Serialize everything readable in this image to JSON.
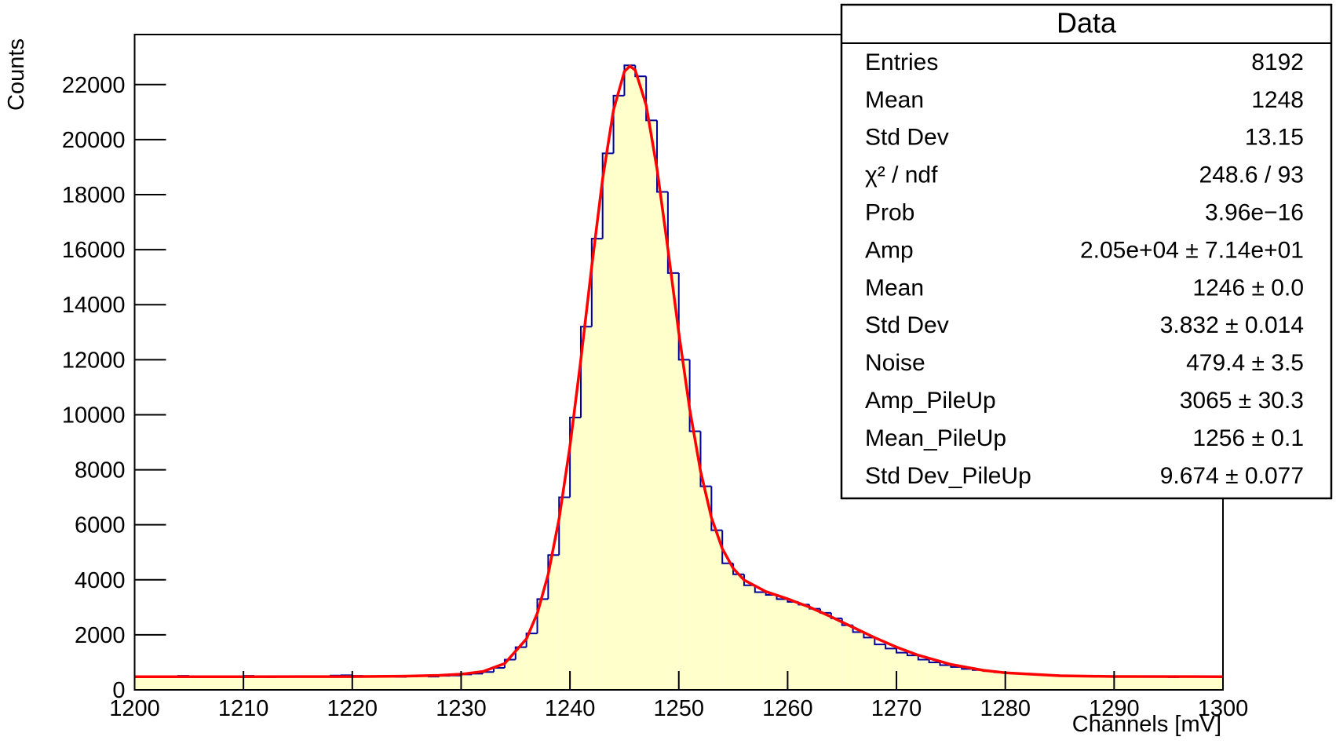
{
  "chart_data": {
    "type": "histogram",
    "ylabel": "Counts",
    "xlabel": "Channels [mV]",
    "bins": [
      1200,
      1201,
      1202,
      1203,
      1204,
      1205,
      1206,
      1207,
      1208,
      1209,
      1210,
      1211,
      1212,
      1213,
      1214,
      1215,
      1216,
      1217,
      1218,
      1219,
      1220,
      1221,
      1222,
      1223,
      1224,
      1225,
      1226,
      1227,
      1228,
      1229,
      1230,
      1231,
      1232,
      1233,
      1234,
      1235,
      1236,
      1237,
      1238,
      1239,
      1240,
      1241,
      1242,
      1243,
      1244,
      1245,
      1246,
      1247,
      1248,
      1249,
      1250,
      1251,
      1252,
      1253,
      1254,
      1255,
      1256,
      1257,
      1258,
      1259,
      1260,
      1261,
      1262,
      1263,
      1264,
      1265,
      1266,
      1267,
      1268,
      1269,
      1270,
      1271,
      1272,
      1273,
      1274,
      1275,
      1276,
      1277,
      1278,
      1279,
      1280,
      1281,
      1282,
      1283,
      1284,
      1285,
      1286,
      1287,
      1288,
      1289,
      1290,
      1291,
      1292,
      1293,
      1294,
      1295,
      1296,
      1297,
      1298,
      1299,
      1300
    ],
    "values": [
      480,
      490,
      470,
      500,
      510,
      480,
      470,
      490,
      500,
      480,
      510,
      470,
      460,
      480,
      490,
      470,
      500,
      480,
      520,
      530,
      510,
      500,
      480,
      490,
      470,
      490,
      500,
      480,
      510,
      520,
      560,
      590,
      650,
      800,
      1100,
      1550,
      2050,
      3300,
      4900,
      7000,
      9900,
      13200,
      16400,
      19500,
      21600,
      22700,
      22300,
      20700,
      18100,
      15150,
      12000,
      9400,
      7400,
      5800,
      4600,
      4200,
      3800,
      3550,
      3450,
      3300,
      3200,
      3100,
      2950,
      2800,
      2600,
      2350,
      2100,
      1900,
      1650,
      1500,
      1350,
      1250,
      1100,
      1000,
      900,
      830,
      760,
      720,
      680,
      640,
      610,
      590,
      560,
      550,
      530,
      520,
      500,
      490,
      500,
      480,
      490,
      470,
      480,
      500,
      470,
      460,
      480,
      470,
      490,
      480
    ],
    "color": "#ffffcc",
    "edge_color": "#000099",
    "fit": {
      "color": "#ff0000",
      "x": [
        1200,
        1210,
        1220,
        1225,
        1228,
        1230,
        1232,
        1234,
        1236,
        1237,
        1238,
        1239,
        1240,
        1241,
        1242,
        1243,
        1244,
        1245,
        1245.5,
        1246,
        1247,
        1248,
        1249,
        1250,
        1251,
        1252,
        1253,
        1254,
        1255,
        1256,
        1258,
        1260,
        1262,
        1264,
        1266,
        1268,
        1270,
        1272,
        1275,
        1278,
        1280,
        1285,
        1290,
        1300
      ],
      "values": [
        479,
        479,
        482,
        498,
        527,
        569,
        666,
        956,
        1852,
        2782,
        4199,
        6215,
        8856,
        12004,
        15387,
        18570,
        21076,
        22474,
        22673,
        22525,
        21255,
        18937,
        16023,
        12982,
        10209,
        7946,
        6260,
        5131,
        4417,
        3991,
        3571,
        3307,
        3009,
        2656,
        2275,
        1899,
        1555,
        1260,
        925,
        710,
        620,
        513,
        485,
        479
      ]
    },
    "xlim": [
      1200,
      1300
    ],
    "ylim": [
      0,
      23820
    ],
    "xticks": [
      1200,
      1210,
      1220,
      1230,
      1240,
      1250,
      1260,
      1270,
      1280,
      1290,
      1300
    ],
    "yticks": [
      0,
      2000,
      4000,
      6000,
      8000,
      10000,
      12000,
      14000,
      16000,
      18000,
      20000,
      22000
    ],
    "stats": {
      "title": "Data",
      "rows": [
        [
          "Entries",
          "8192"
        ],
        [
          "Mean",
          "1248"
        ],
        [
          "Std Dev",
          "13.15"
        ],
        [
          "χ² / ndf",
          "248.6 / 93"
        ],
        [
          "Prob",
          "3.96e−16"
        ],
        [
          "Amp",
          "2.05e+04 ± 7.14e+01"
        ],
        [
          "Mean",
          "1246 ± 0.0"
        ],
        [
          "Std Dev",
          "3.832 ± 0.014"
        ],
        [
          "Noise",
          "479.4 ± 3.5"
        ],
        [
          "Amp_PileUp",
          "3065 ± 30.3"
        ],
        [
          "Mean_PileUp",
          "1256 ± 0.1"
        ],
        [
          "Std Dev_PileUp",
          "9.674 ± 0.077"
        ]
      ]
    }
  }
}
